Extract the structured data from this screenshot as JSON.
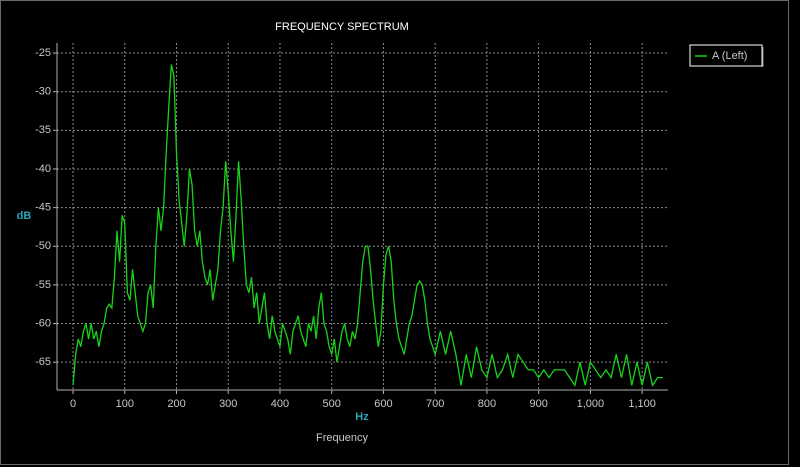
{
  "chart_data": {
    "type": "line",
    "title": "FREQUENCY SPECTRUM",
    "subtitle": "Frequency",
    "xlabel": "Hz",
    "ylabel": "dB",
    "grid": true,
    "legend": "right",
    "xlim": [
      -31,
      1150
    ],
    "ylim": [
      -68.6,
      -23.7
    ],
    "xticks": [
      0,
      100,
      200,
      300,
      400,
      500,
      600,
      700,
      800,
      900,
      {
        "value": 1000,
        "label": "1,000"
      },
      {
        "value": 1100,
        "label": "1,100"
      }
    ],
    "yticks": [
      -25,
      -30,
      -35,
      -40,
      -45,
      -50,
      -55,
      -60,
      -65
    ],
    "x": [
      0,
      5,
      10,
      15,
      20,
      25,
      30,
      35,
      40,
      45,
      50,
      55,
      60,
      65,
      70,
      75,
      80,
      85,
      90,
      95,
      100,
      105,
      110,
      115,
      120,
      125,
      130,
      135,
      140,
      145,
      150,
      155,
      160,
      165,
      170,
      175,
      180,
      185,
      190,
      195,
      200,
      205,
      210,
      215,
      220,
      225,
      230,
      235,
      240,
      245,
      250,
      255,
      260,
      265,
      270,
      275,
      280,
      285,
      290,
      295,
      300,
      305,
      310,
      315,
      320,
      325,
      330,
      335,
      340,
      345,
      350,
      355,
      360,
      365,
      370,
      375,
      380,
      385,
      390,
      395,
      400,
      405,
      410,
      415,
      420,
      425,
      430,
      435,
      440,
      445,
      450,
      455,
      460,
      465,
      470,
      475,
      480,
      485,
      490,
      495,
      500,
      505,
      510,
      515,
      520,
      525,
      530,
      535,
      540,
      545,
      550,
      555,
      560,
      565,
      570,
      575,
      580,
      585,
      590,
      595,
      600,
      605,
      610,
      615,
      620,
      625,
      630,
      635,
      640,
      645,
      650,
      655,
      660,
      665,
      670,
      675,
      680,
      685,
      690,
      695,
      700,
      710,
      720,
      730,
      740,
      750,
      760,
      770,
      780,
      790,
      800,
      810,
      820,
      830,
      840,
      850,
      860,
      870,
      880,
      890,
      900,
      910,
      920,
      930,
      940,
      950,
      960,
      970,
      980,
      990,
      1000,
      1010,
      1020,
      1030,
      1040,
      1050,
      1060,
      1070,
      1080,
      1090,
      1100,
      1110,
      1120,
      1130,
      1140
    ],
    "series": [
      {
        "name": "A (Left)",
        "color": "#19d319",
        "values": [
          -68,
          -64,
          -62,
          -63,
          -61,
          -60,
          -62,
          -60,
          -62,
          -61,
          -63,
          -61,
          -60,
          -58,
          -57.5,
          -58,
          -54,
          -48,
          -52,
          -46,
          -47,
          -56,
          -57,
          -53,
          -56,
          -59,
          -60,
          -61,
          -60,
          -56,
          -55,
          -58,
          -50,
          -45,
          -48,
          -45,
          -38,
          -32,
          -26.5,
          -28,
          -38,
          -44,
          -47,
          -50,
          -46,
          -40,
          -42,
          -48,
          -50,
          -48,
          -52,
          -54,
          -55,
          -53,
          -57,
          -55,
          -53,
          -48,
          -45,
          -39,
          -43,
          -48,
          -52,
          -46,
          -39,
          -44,
          -50,
          -55,
          -56,
          -54,
          -58,
          -56,
          -60,
          -58,
          -56,
          -60,
          -62,
          -59,
          -61,
          -62,
          -63,
          -60,
          -61,
          -62,
          -64,
          -61,
          -60,
          -59,
          -61,
          -62,
          -63,
          -60,
          -61,
          -59,
          -62,
          -58,
          -56,
          -60,
          -61,
          -63,
          -64,
          -62,
          -65,
          -63,
          -61,
          -60,
          -62,
          -63,
          -61,
          -62,
          -60,
          -56,
          -52,
          -50,
          -50,
          -53,
          -57,
          -60,
          -63,
          -61,
          -55,
          -51,
          -50,
          -52,
          -57,
          -60,
          -62,
          -63,
          -64,
          -62,
          -60,
          -59,
          -57,
          -55,
          -54.5,
          -55,
          -57,
          -60,
          -62,
          -63,
          -64,
          -61,
          -64,
          -61,
          -64,
          -68,
          -64,
          -67,
          -63,
          -66,
          -67,
          -64,
          -67,
          -66,
          -64,
          -67,
          -64,
          -65,
          -66,
          -66,
          -67,
          -66,
          -67,
          -66,
          -66,
          -66,
          -67,
          -68,
          -65,
          -68,
          -65,
          -66,
          -67,
          -66,
          -67,
          -64,
          -67,
          -64,
          -68,
          -65,
          -68,
          -65,
          -68,
          -67,
          -67
        ]
      }
    ]
  }
}
